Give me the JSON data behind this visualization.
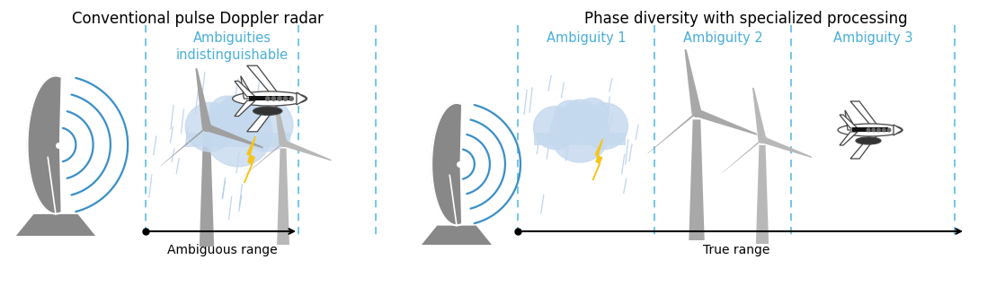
{
  "title_left": "Conventional pulse Doppler radar",
  "title_right": "Phase diversity with specialized processing",
  "label_ambiguous": "Ambiguous range",
  "label_true": "True range",
  "label_indistinguishable": "Ambiguities\nindistinguishable",
  "label_amb1": "Ambiguity 1",
  "label_amb2": "Ambiguity 2",
  "label_amb3": "Ambiguity 3",
  "blue_text_color": "#4aaed9",
  "dashed_line_color": "#5bbce4",
  "arrow_color": "#000000",
  "title_fontsize": 12,
  "label_fontsize": 10,
  "ambig_label_fontsize": 10.5,
  "background_color": "#ffffff",
  "rain_line_color": "#aac8e8",
  "wind_turbine_color": "#aaaaaa",
  "wind_turbine_color2": "#c0c0c0",
  "cloud_color": "#c5d9ee",
  "lightning_color": "#f5c518",
  "radar_color": "#888888",
  "wave_color": "#3a8fc7"
}
